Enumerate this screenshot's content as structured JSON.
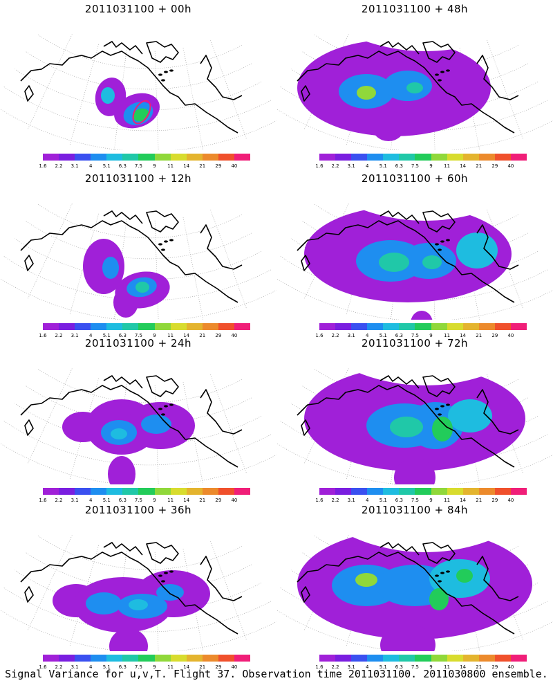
{
  "panels": [
    {
      "title": "2011031100 + 00h",
      "stage": 0
    },
    {
      "title": "2011031100 + 48h",
      "stage": 4
    },
    {
      "title": "2011031100 + 12h",
      "stage": 1
    },
    {
      "title": "2011031100 + 60h",
      "stage": 5
    },
    {
      "title": "2011031100 + 24h",
      "stage": 2
    },
    {
      "title": "2011031100 + 72h",
      "stage": 6
    },
    {
      "title": "2011031100 + 36h",
      "stage": 3
    },
    {
      "title": "2011031100 + 84h",
      "stage": 7
    }
  ],
  "colorbar": {
    "labels": [
      "1.6",
      "2.2",
      "3.1",
      "4",
      "5.1",
      "6.3",
      "7.5",
      "9",
      "11",
      "14",
      "21",
      "29",
      "40"
    ],
    "colors": [
      "#a020d8",
      "#7a1ee0",
      "#3a50f0",
      "#1e8ef0",
      "#1ebce0",
      "#20c8a8",
      "#22cc5a",
      "#90d83a",
      "#d8dc2e",
      "#e4b42e",
      "#ec8a2c",
      "#f0502c",
      "#f01e78"
    ]
  },
  "caption": "Signal Variance for u,v,T. Flight 37. Observation time 2011031100. 2011030800 ensemble."
}
